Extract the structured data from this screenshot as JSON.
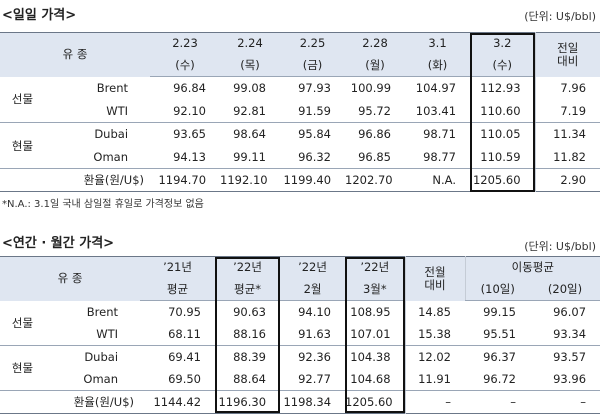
{
  "daily": {
    "title": "<일일 가격>",
    "unit": "(단위: U$/bbl)",
    "header": {
      "label": "유 종",
      "columns": [
        {
          "date": "2.23",
          "day": "(수)"
        },
        {
          "date": "2.24",
          "day": "(목)"
        },
        {
          "date": "2.25",
          "day": "(금)"
        },
        {
          "date": "2.28",
          "day": "(월)"
        },
        {
          "date": "3.1",
          "day": "(화)"
        },
        {
          "date": "3.2",
          "day": "(수)",
          "boxed": true
        }
      ],
      "change": [
        "전일",
        "대비"
      ]
    },
    "groups": [
      {
        "name": "선물",
        "rows": [
          {
            "name": "Brent",
            "values": [
              "96.84",
              "99.08",
              "97.93",
              "100.99",
              "104.97",
              "112.93",
              "7.96"
            ]
          },
          {
            "name": "WTI",
            "values": [
              "92.10",
              "92.81",
              "91.59",
              "95.72",
              "103.41",
              "110.60",
              "7.19"
            ]
          }
        ]
      },
      {
        "name": "현물",
        "rows": [
          {
            "name": "Dubai",
            "values": [
              "93.65",
              "98.64",
              "95.84",
              "96.86",
              "98.71",
              "110.05",
              "11.34"
            ]
          },
          {
            "name": "Oman",
            "values": [
              "94.13",
              "99.11",
              "96.32",
              "96.85",
              "98.77",
              "110.59",
              "11.82"
            ]
          }
        ]
      }
    ],
    "fx": {
      "name": "환율(원/U$)",
      "values": [
        "1194.70",
        "1192.10",
        "1199.40",
        "1202.70",
        "N.A.",
        "1205.60",
        "2.90"
      ]
    },
    "note": "*N.A.: 3.1일 국내 삼일절 휴일로 가격정보 없음"
  },
  "period": {
    "title": "<연간 · 월간 가격>",
    "unit": "(단위: U$/bbl)",
    "header": {
      "label": "유 종",
      "columns": [
        {
          "year": "’21년",
          "period": "평균"
        },
        {
          "year": "’22년",
          "period": "평균*",
          "boxed": true
        },
        {
          "year": "’22년",
          "period": "2월"
        },
        {
          "year": "’22년",
          "period": "3월*",
          "boxed": true
        }
      ],
      "change": [
        "전월",
        "대비"
      ],
      "moving_average": {
        "label": "이동평균",
        "columns": [
          "(10일)",
          "(20일)"
        ]
      }
    },
    "groups": [
      {
        "name": "선물",
        "rows": [
          {
            "name": "Brent",
            "values": [
              "70.95",
              "90.63",
              "94.10",
              "108.95",
              "14.85",
              "99.15",
              "96.07"
            ]
          },
          {
            "name": "WTI",
            "values": [
              "68.11",
              "88.16",
              "91.63",
              "107.01",
              "15.38",
              "95.51",
              "93.34"
            ]
          }
        ]
      },
      {
        "name": "현물",
        "rows": [
          {
            "name": "Dubai",
            "values": [
              "69.41",
              "88.39",
              "92.36",
              "104.38",
              "12.02",
              "96.37",
              "93.57"
            ]
          },
          {
            "name": "Oman",
            "values": [
              "69.50",
              "88.64",
              "92.77",
              "104.68",
              "11.91",
              "96.72",
              "93.96"
            ]
          }
        ]
      }
    ],
    "fx": {
      "name": "환율(원/U$)",
      "values": [
        "1144.42",
        "1196.30",
        "1198.34",
        "1205.60",
        "–",
        "–",
        "–"
      ]
    }
  }
}
